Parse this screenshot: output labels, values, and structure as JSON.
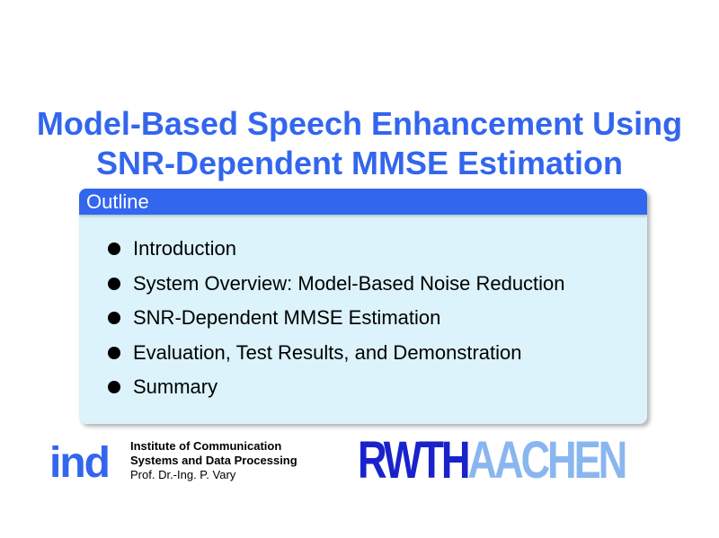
{
  "slide": {
    "title_lines": [
      "Model-Based Speech Enhancement Using",
      "SNR-Dependent MMSE Estimation"
    ],
    "outline": {
      "heading": "Outline",
      "items": [
        "Introduction",
        "System Overview: Model-Based Noise Reduction",
        "SNR-Dependent MMSE Estimation",
        "Evaluation, Test Results, and Demonstration",
        "Summary"
      ]
    },
    "footer": {
      "ind_logo": "ind",
      "institute_line1": "Institute of Communication",
      "institute_line2": "Systems and Data Processing",
      "professor": "Prof. Dr.-Ing. P. Vary",
      "university_logo_part1": "RWTH",
      "university_logo_part2": "AACHEN"
    },
    "colors": {
      "accent": "#3366ee",
      "block_body": "#dcf3fb",
      "rwth_dark": "#1a22cc",
      "rwth_light": "#8ab6f0"
    }
  }
}
